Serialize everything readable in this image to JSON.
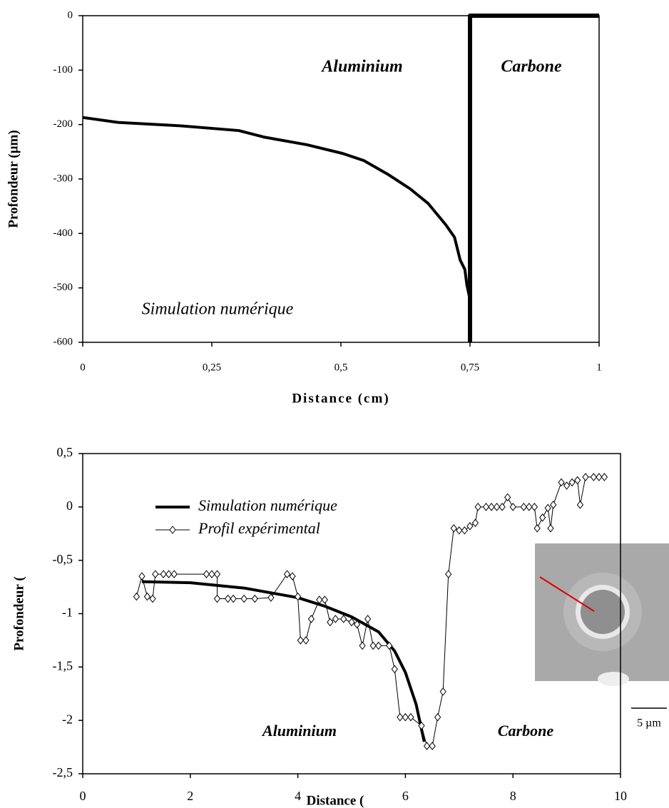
{
  "chart_data": [
    {
      "type": "line",
      "y_label": "Profondeur (µm)",
      "x_label": "Distance (cm)",
      "annotations": [
        "Aluminium",
        "Carbone",
        "Simulation numérique"
      ],
      "xlim": [
        0,
        1
      ],
      "ylim": [
        -600,
        0
      ],
      "xticks": [
        0,
        {
          "value": 0.25,
          "label": "0,25"
        },
        {
          "value": 0.5,
          "label": "0,5"
        },
        {
          "value": 0.75,
          "label": "0,75"
        },
        1
      ],
      "yticks": [
        0,
        -100,
        -200,
        -300,
        -400,
        -500,
        -600
      ],
      "series": [
        {
          "color": "#000000",
          "x": [
            0,
            0.068,
            0.185,
            0.302,
            0.351,
            0.434,
            0.503,
            0.544,
            0.592,
            0.634,
            0.669,
            0.703,
            0.72,
            0.731,
            0.74,
            0.744,
            0.75,
            0.75
          ],
          "values": [
            -187,
            -196,
            -202,
            -211,
            -223,
            -237,
            -253,
            -266,
            -292,
            -318,
            -345,
            -384,
            -407,
            -449,
            -466,
            -495,
            -521,
            -541
          ]
        },
        {
          "color": "#000000",
          "x": [
            0.75,
            0.75,
            1
          ],
          "values": [
            -600,
            0,
            0
          ]
        }
      ]
    },
    {
      "type": "line",
      "y_label": "Profondeur (",
      "x_label": "Distance (",
      "annotations": [
        "Aluminium",
        "Carbone",
        "5 µm"
      ],
      "legend": true,
      "xlim": [
        0,
        10
      ],
      "ylim": [
        -2.5,
        0.5
      ],
      "xticks": [
        0,
        2,
        4,
        6,
        8,
        10
      ],
      "yticks": [
        {
          "value": 0.5,
          "label": "0,5"
        },
        0,
        {
          "value": -0.5,
          "label": "-0,5"
        },
        -1,
        {
          "value": -1.5,
          "label": "-1,5"
        },
        -2,
        {
          "value": -2.5,
          "label": "-2,5"
        }
      ],
      "series": [
        {
          "name": "Simulation numérique",
          "color": "#000000",
          "x": [
            1.1,
            2,
            3,
            4,
            4.5,
            5,
            5.5,
            5.8,
            6,
            6.2,
            6.35
          ],
          "values": [
            -0.7,
            -0.71,
            -0.76,
            -0.85,
            -0.93,
            -1.03,
            -1.17,
            -1.35,
            -1.55,
            -1.85,
            -2.2
          ]
        },
        {
          "name": "Profil expérimental",
          "color": "#000000",
          "marker": "diamond",
          "x": [
            1.0,
            1.1,
            1.2,
            1.3,
            1.35,
            1.5,
            1.6,
            1.7,
            2.3,
            2.4,
            2.5,
            2.5,
            2.7,
            2.8,
            3.0,
            3.2,
            3.5,
            3.8,
            3.9,
            4.0,
            4.05,
            4.15,
            4.25,
            4.4,
            4.5,
            4.6,
            4.7,
            4.85,
            5.0,
            5.1,
            5.2,
            5.3,
            5.4,
            5.5,
            5.7,
            5.8,
            5.9,
            6.0,
            6.1,
            6.3,
            6.4,
            6.5,
            6.6,
            6.7,
            6.8,
            6.9,
            7.0,
            7.1,
            7.2,
            7.3,
            7.35,
            7.5,
            7.6,
            7.7,
            7.8,
            7.9,
            8.0,
            8.2,
            8.3,
            8.4,
            8.45,
            8.55,
            8.65,
            8.7,
            8.75,
            8.9,
            9.0,
            9.1,
            9.2,
            9.25,
            9.35,
            9.5,
            9.6,
            9.7
          ],
          "values": [
            -0.84,
            -0.65,
            -0.84,
            -0.86,
            -0.63,
            -0.63,
            -0.63,
            -0.63,
            -0.63,
            -0.63,
            -0.63,
            -0.86,
            -0.86,
            -0.86,
            -0.86,
            -0.86,
            -0.85,
            -0.63,
            -0.65,
            -0.84,
            -1.25,
            -1.25,
            -1.05,
            -0.87,
            -0.87,
            -1.08,
            -1.05,
            -1.05,
            -1.08,
            -1.1,
            -1.3,
            -1.05,
            -1.3,
            -1.3,
            -1.3,
            -1.52,
            -1.97,
            -1.97,
            -1.97,
            -2.05,
            -2.24,
            -2.24,
            -1.97,
            -1.73,
            -0.63,
            -0.2,
            -0.22,
            -0.22,
            -0.18,
            -0.15,
            0,
            0,
            0,
            0,
            0,
            0.09,
            0,
            0,
            0,
            0,
            -0.2,
            -0.1,
            -0.01,
            -0.2,
            0.02,
            0.23,
            0.2,
            0.23,
            0.25,
            0.02,
            0.28,
            0.28,
            0.28,
            0.28
          ]
        }
      ]
    }
  ]
}
